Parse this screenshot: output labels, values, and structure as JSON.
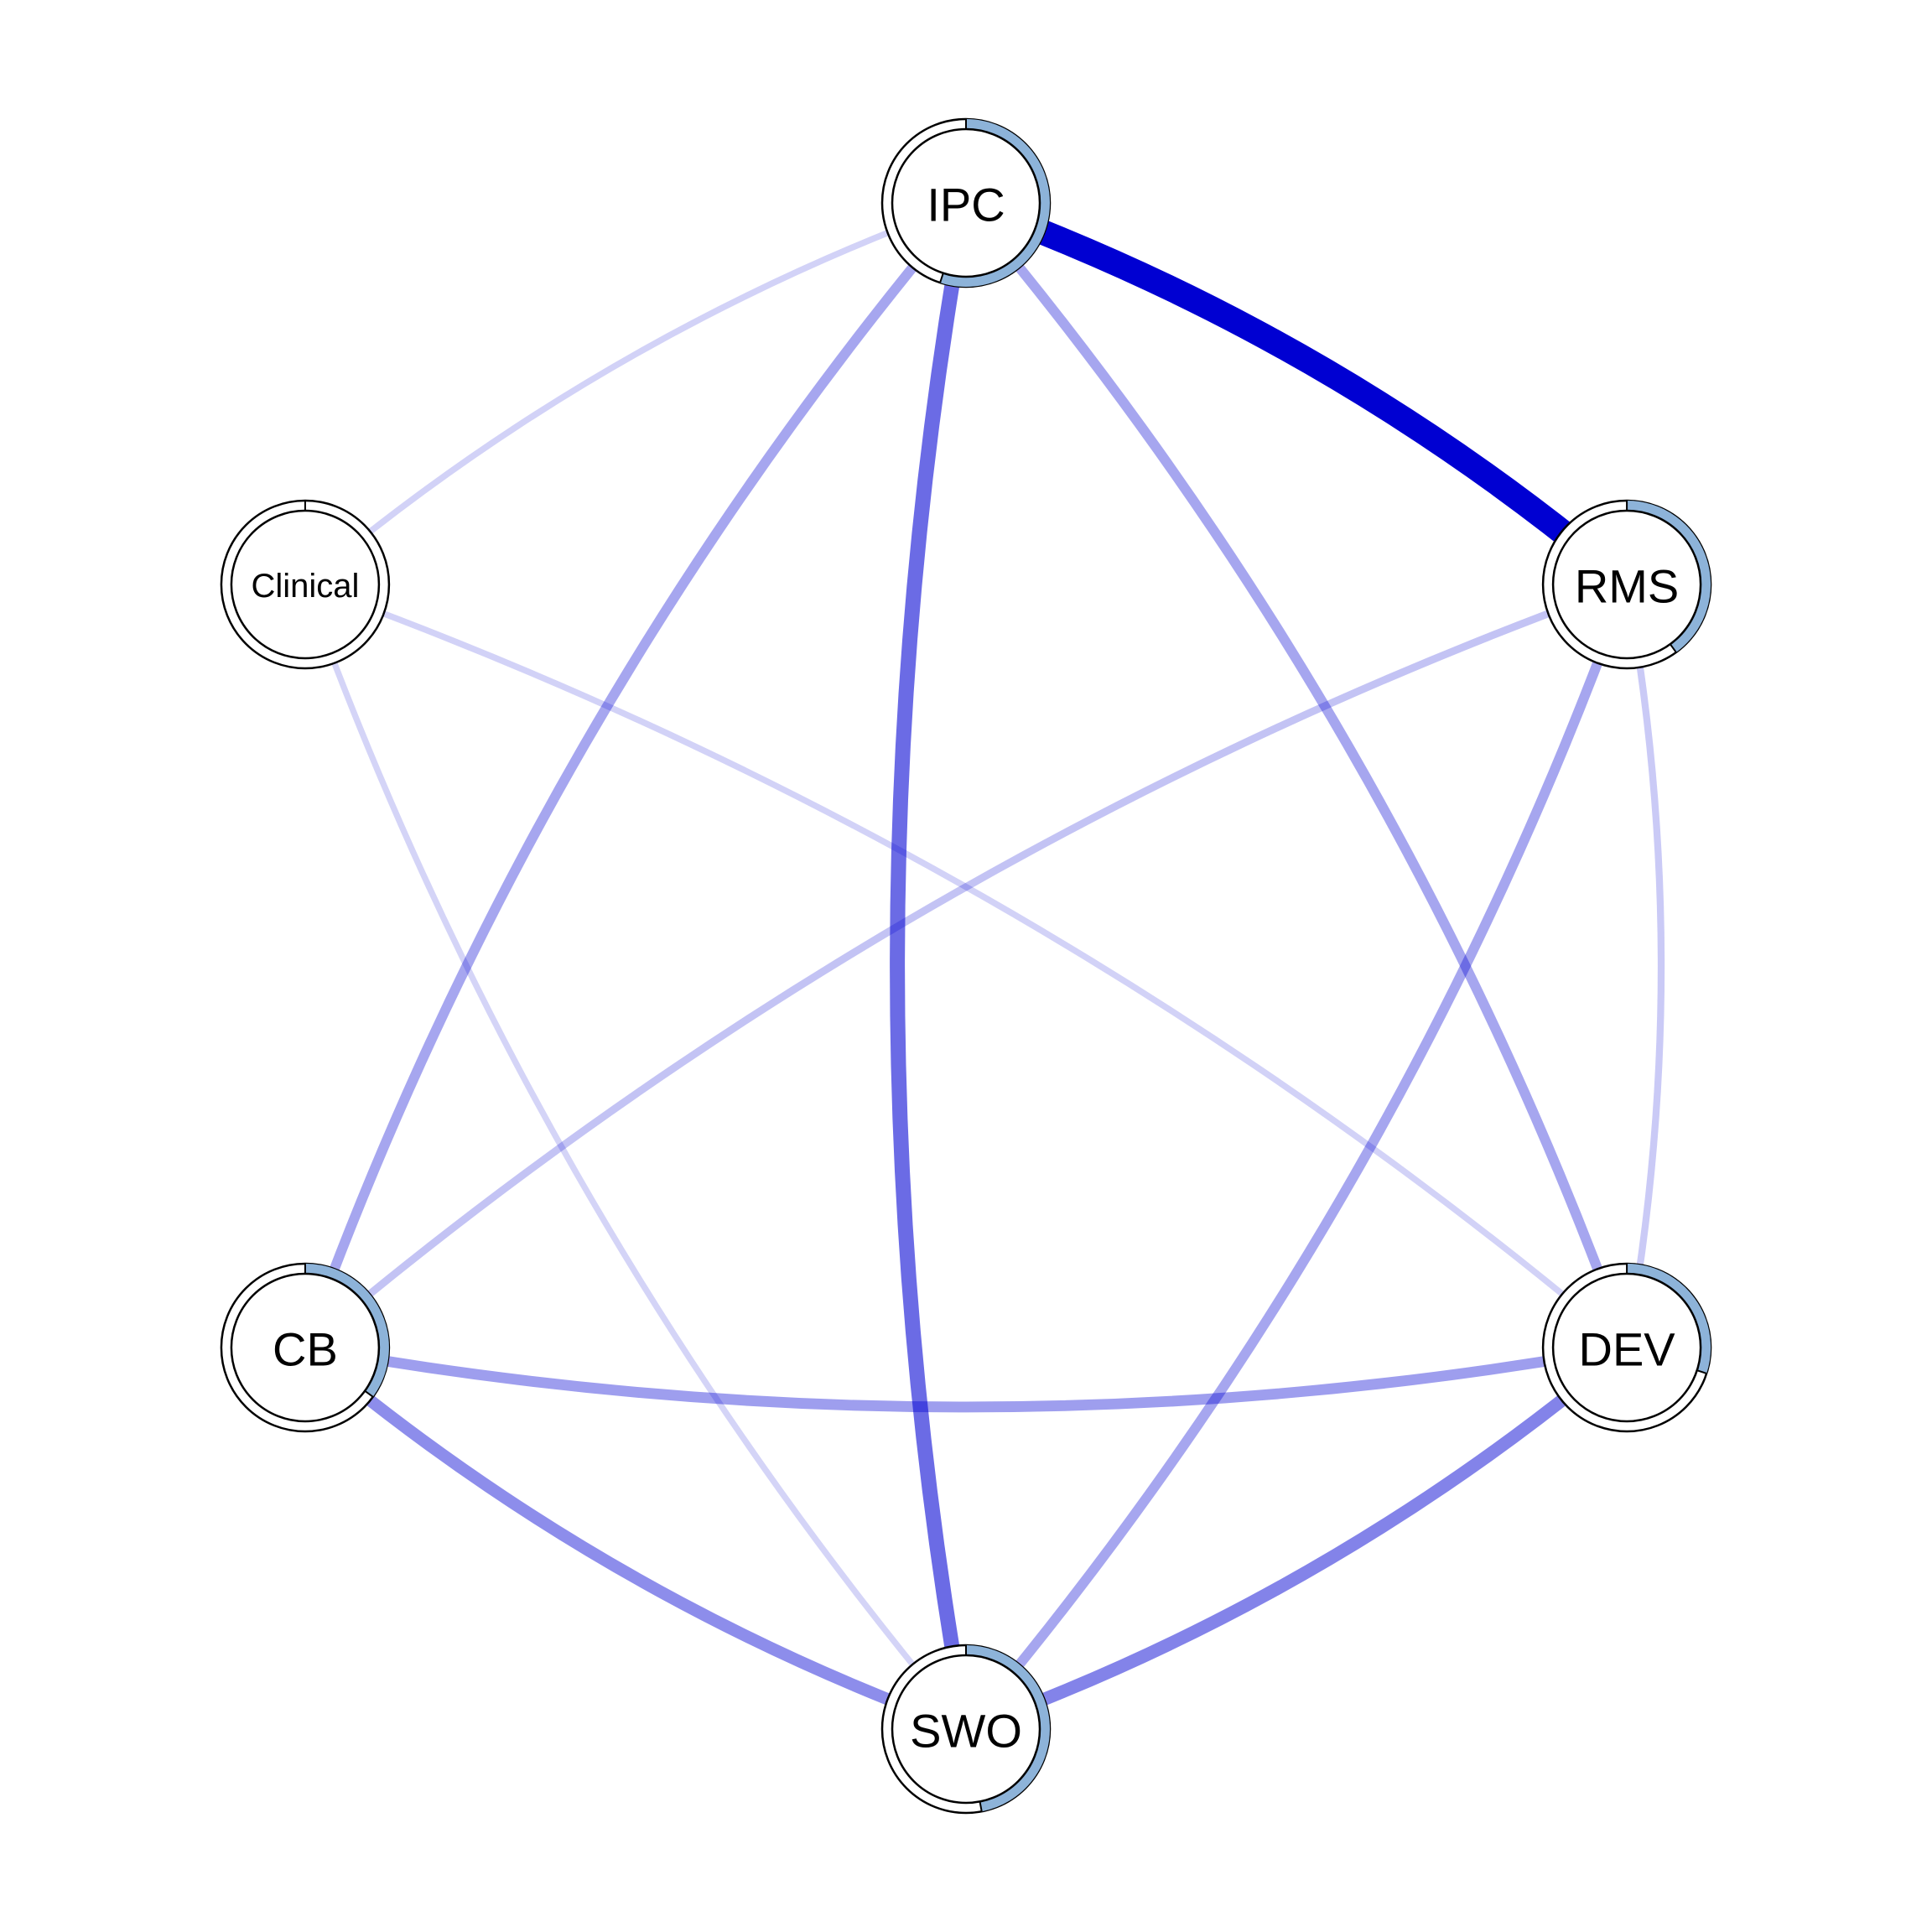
{
  "colors": {
    "edge": "#0000D2",
    "pie": "#8DB3D9",
    "node_fill": "#FFFFFF",
    "node_border": "#000000"
  },
  "nodes": [
    {
      "id": "IPC",
      "label": "IPC",
      "pie": 0.55
    },
    {
      "id": "RMS",
      "label": "RMS",
      "pie": 0.4
    },
    {
      "id": "DEV",
      "label": "DEV",
      "pie": 0.3
    },
    {
      "id": "SWO",
      "label": "SWO",
      "pie": 0.47
    },
    {
      "id": "CB",
      "label": "CB",
      "pie": 0.35
    },
    {
      "id": "Clinical",
      "label": "Clinical",
      "pie": 0
    }
  ],
  "edges": [
    {
      "from": "IPC",
      "to": "RMS",
      "weight": 1.0
    },
    {
      "from": "IPC",
      "to": "SWO",
      "weight": 0.52
    },
    {
      "from": "IPC",
      "to": "CB",
      "weight": 0.28
    },
    {
      "from": "IPC",
      "to": "DEV",
      "weight": 0.28
    },
    {
      "from": "IPC",
      "to": "Clinical",
      "weight": 0.1
    },
    {
      "from": "RMS",
      "to": "SWO",
      "weight": 0.28
    },
    {
      "from": "RMS",
      "to": "CB",
      "weight": 0.16
    },
    {
      "from": "RMS",
      "to": "DEV",
      "weight": 0.13
    },
    {
      "from": "DEV",
      "to": "SWO",
      "weight": 0.42
    },
    {
      "from": "DEV",
      "to": "CB",
      "weight": 0.31
    },
    {
      "from": "DEV",
      "to": "Clinical",
      "weight": 0.1
    },
    {
      "from": "SWO",
      "to": "CB",
      "weight": 0.38
    },
    {
      "from": "SWO",
      "to": "Clinical",
      "weight": 0.09
    }
  ]
}
